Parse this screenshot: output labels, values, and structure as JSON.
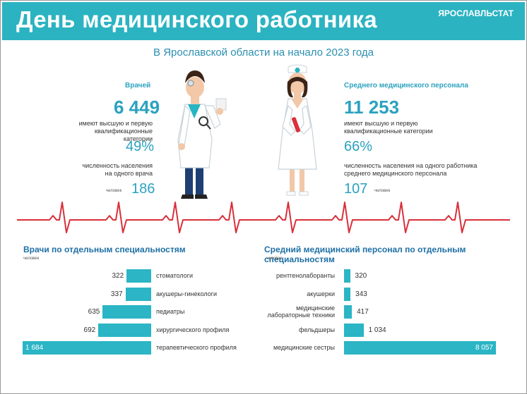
{
  "header": {
    "title": "День медицинского работника",
    "brand": "ЯРОСЛАВЛЬСТАТ"
  },
  "subtitle": "В Ярославской области на начало 2023 года",
  "doctors": {
    "heading": "Врачей",
    "count": "6 449",
    "qual_label_1": "имеют высшую и первую",
    "qual_label_2": "квалификационные категории",
    "qual_pct": "49%",
    "pop_label_1": "численность населения",
    "pop_label_2": "на одного врача",
    "pop_unit": "человек",
    "pop_value": "186"
  },
  "nurses": {
    "heading": "Среднего медицинского персонала",
    "count": "11 253",
    "qual_label_1": "имеют высшую и первую",
    "qual_label_2": "квалификационные категории",
    "qual_pct": "66%",
    "pop_label_1": "численность населения на одного работника",
    "pop_label_2": "среднего медицинского персонала",
    "pop_unit": "человек",
    "pop_value": "107"
  },
  "chart_data": [
    {
      "type": "bar",
      "title": "Врачи по отдельным специальностям",
      "unit": "человек",
      "categories": [
        "стоматологи",
        "акушеры-гинекологи",
        "педиатры",
        "хирургического профиля",
        "терапевтического профиля"
      ],
      "values": [
        322,
        337,
        635,
        692,
        1684
      ],
      "value_labels": [
        "322",
        "337",
        "635",
        "692",
        "1 684"
      ]
    },
    {
      "type": "bar",
      "title": "Средний медицинский персонал по отдельным специальностям",
      "unit": "человек",
      "categories": [
        "рентгенолаборанты",
        "акушерки",
        "медицинские лабораторные техники",
        "фельдшеры",
        "медицинские сестры"
      ],
      "category_lines": [
        [
          "рентгенолаборанты"
        ],
        [
          "акушерки"
        ],
        [
          "медицинские",
          "лабораторные техники"
        ],
        [
          "фельдшеры"
        ],
        [
          "медицинские сестры"
        ]
      ],
      "values": [
        320,
        343,
        417,
        1034,
        8057
      ],
      "value_labels": [
        "320",
        "343",
        "417",
        "1 034",
        "8 057"
      ]
    }
  ],
  "colors": {
    "accent": "#2bb3c1",
    "pulse": "#d9303a",
    "navy": "#1d4a7a",
    "heading": "#2ba2bf"
  }
}
